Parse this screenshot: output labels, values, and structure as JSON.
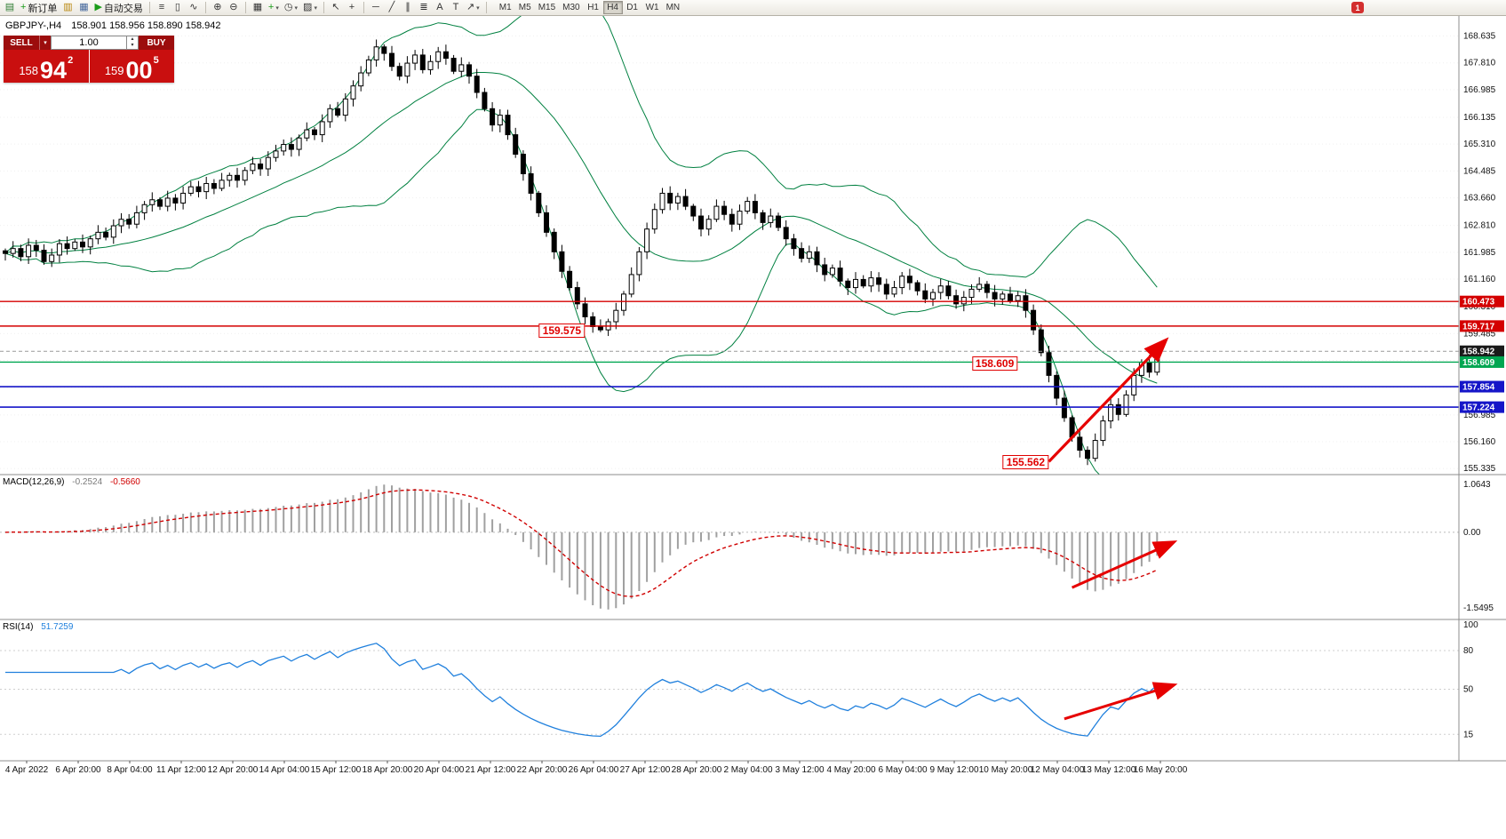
{
  "toolbar": {
    "caret_glyph": "▾",
    "items": [
      {
        "type": "icon",
        "name": "new-chart-icon",
        "glyph": "▤",
        "color": "#2e7d32"
      },
      {
        "type": "button",
        "name": "new-order-button",
        "glyph": "+",
        "color": "#1a9c1a",
        "label": "新订单"
      },
      {
        "type": "icon",
        "name": "charts-list-icon",
        "glyph": "▥",
        "color": "#b8860b"
      },
      {
        "type": "icon",
        "name": "market-watch-icon",
        "glyph": "▦",
        "color": "#44679c"
      },
      {
        "type": "button",
        "name": "auto-trading-button",
        "glyph": "▶",
        "color": "#1a9c1a",
        "label": "自动交易"
      },
      {
        "type": "sep"
      },
      {
        "type": "icon",
        "name": "bar-chart-icon",
        "glyph": "≡",
        "color": "#333333"
      },
      {
        "type": "icon",
        "name": "candlestick-chart-icon",
        "glyph": "▯",
        "color": "#333333"
      },
      {
        "type": "icon",
        "name": "line-chart-icon",
        "glyph": "∿",
        "color": "#333333"
      },
      {
        "type": "sep"
      },
      {
        "type": "icon",
        "name": "zoom-in-icon",
        "glyph": "⊕",
        "color": "#333333"
      },
      {
        "type": "icon",
        "name": "zoom-out-icon",
        "glyph": "⊖",
        "color": "#333333"
      },
      {
        "type": "sep"
      },
      {
        "type": "icon",
        "name": "tile-windows-icon",
        "glyph": "▦",
        "color": "#333333"
      },
      {
        "type": "icon",
        "name": "indicators-icon",
        "glyph": "+",
        "color": "#1a9c1a",
        "caret": true
      },
      {
        "type": "icon",
        "name": "periods-icon",
        "glyph": "◷",
        "color": "#333333",
        "caret": true
      },
      {
        "type": "icon",
        "name": "templates-icon",
        "glyph": "▨",
        "color": "#333333",
        "caret": true
      },
      {
        "type": "sep"
      },
      {
        "type": "icon",
        "name": "cursor-icon",
        "glyph": "↖",
        "color": "#333333"
      },
      {
        "type": "icon",
        "name": "crosshair-icon",
        "glyph": "+",
        "color": "#333333"
      },
      {
        "type": "sep"
      },
      {
        "type": "icon",
        "name": "horizontal-line-icon",
        "glyph": "─",
        "color": "#333333"
      },
      {
        "type": "icon",
        "name": "trendline-icon",
        "glyph": "╱",
        "color": "#333333"
      },
      {
        "type": "icon",
        "name": "channel-icon",
        "glyph": "∥",
        "color": "#333333"
      },
      {
        "type": "icon",
        "name": "fibonacci-icon",
        "glyph": "≣",
        "color": "#333333"
      },
      {
        "type": "icon",
        "name": "text-icon",
        "glyph": "A",
        "color": "#333333"
      },
      {
        "type": "icon",
        "name": "text-label-icon",
        "glyph": "T",
        "color": "#333333"
      },
      {
        "type": "icon",
        "name": "arrows-icon",
        "glyph": "↗",
        "color": "#333333",
        "caret": true
      },
      {
        "type": "sep"
      }
    ],
    "timeframes": [
      "M1",
      "M5",
      "M15",
      "M30",
      "H1",
      "H4",
      "D1",
      "W1",
      "MN"
    ],
    "active_timeframe": "H4",
    "notification_badge": "1"
  },
  "symbol_header": {
    "symbol": "GBPJPY-,H4",
    "ohlc": "158.901 158.956 158.890 158.942"
  },
  "quote_panel": {
    "sell_label": "SELL",
    "buy_label": "BUY",
    "volume": "1.00",
    "caret_up_glyph": "▴",
    "caret_down_glyph": "▾",
    "sell": {
      "small": "158",
      "big": "94",
      "sup": "2"
    },
    "buy": {
      "small": "159",
      "big": "00",
      "sup": "5"
    }
  },
  "indicators": {
    "macd": {
      "name": "MACD(12,26,9)",
      "value_main": "-0.2524",
      "value_signal": "-0.5660"
    },
    "rsi": {
      "name": "RSI(14)",
      "value": "51.7259"
    }
  },
  "colors": {
    "band_green": "#008040",
    "histogram_gray": "#a0a0a0",
    "signal_red": "#d00000",
    "rsi_blue": "#2080dd",
    "arrow_red": "#e60000",
    "panel_red": "#c90f0f",
    "axis_border": "#8c8c8c"
  },
  "chart_data": [
    {
      "type": "candlestick",
      "title": "GBPJPY- H4 with Bollinger Bands",
      "symbol": "GBPJPY-",
      "timeframe": "H4",
      "ohlc_display": {
        "open": "158.901",
        "high": "158.956",
        "low": "158.890",
        "close": "158.942"
      },
      "ylim": [
        155.15,
        169.25
      ],
      "bollinger": {
        "period": 20,
        "deviation": 2
      },
      "closes": [
        161.95,
        162.1,
        161.85,
        162.2,
        162.05,
        161.7,
        161.9,
        162.25,
        162.1,
        162.3,
        162.15,
        162.4,
        162.6,
        162.45,
        162.8,
        163.0,
        162.85,
        163.2,
        163.45,
        163.6,
        163.4,
        163.65,
        163.5,
        163.8,
        164.0,
        163.85,
        164.1,
        163.95,
        164.2,
        164.35,
        164.2,
        164.5,
        164.7,
        164.55,
        164.9,
        165.1,
        165.3,
        165.15,
        165.5,
        165.75,
        165.6,
        166.0,
        166.4,
        166.2,
        166.7,
        167.1,
        167.5,
        167.9,
        168.3,
        168.1,
        167.7,
        167.4,
        167.8,
        168.05,
        167.6,
        167.85,
        168.15,
        167.95,
        167.55,
        167.75,
        167.4,
        166.9,
        166.4,
        165.9,
        166.2,
        165.6,
        165.0,
        164.4,
        163.8,
        163.2,
        162.6,
        162.0,
        161.4,
        160.9,
        160.4,
        160.0,
        159.7,
        159.6,
        159.85,
        160.2,
        160.7,
        161.3,
        162.0,
        162.7,
        163.3,
        163.8,
        163.5,
        163.7,
        163.4,
        163.1,
        162.7,
        163.0,
        163.4,
        163.15,
        162.85,
        163.25,
        163.55,
        163.2,
        162.9,
        163.1,
        162.75,
        162.4,
        162.1,
        161.8,
        162.0,
        161.6,
        161.3,
        161.5,
        161.1,
        160.9,
        161.15,
        160.95,
        161.2,
        161.0,
        160.7,
        160.9,
        161.25,
        161.05,
        160.8,
        160.55,
        160.75,
        160.95,
        160.65,
        160.4,
        160.6,
        160.85,
        161.0,
        160.75,
        160.55,
        160.7,
        160.5,
        160.65,
        160.2,
        159.6,
        158.9,
        158.2,
        157.5,
        156.9,
        156.3,
        155.9,
        155.65,
        156.2,
        156.8,
        157.3,
        157.0,
        157.6,
        158.2,
        158.6,
        158.3,
        158.94
      ],
      "y_axis_labels": [
        "168.635",
        "167.810",
        "166.985",
        "166.135",
        "165.310",
        "164.485",
        "163.660",
        "162.810",
        "161.985",
        "161.160",
        "160.310",
        "159.485",
        "158.660",
        "157.835",
        "156.985",
        "156.160",
        "155.335"
      ],
      "x_axis_labels": [
        "4 Apr 2022",
        "6 Apr 20:00",
        "8 Apr 04:00",
        "11 Apr 12:00",
        "12 Apr 20:00",
        "14 Apr 04:00",
        "15 Apr 12:00",
        "18 Apr 20:00",
        "20 Apr 04:00",
        "21 Apr 12:00",
        "22 Apr 20:00",
        "26 Apr 04:00",
        "27 Apr 12:00",
        "28 Apr 20:00",
        "2 May 04:00",
        "3 May 12:00",
        "4 May 20:00",
        "6 May 04:00",
        "9 May 12:00",
        "10 May 20:00",
        "12 May 04:00",
        "13 May 12:00",
        "16 May 20:00"
      ],
      "price_lines": [
        {
          "price": 160.473,
          "label": "160.473",
          "color": "#d40000",
          "width": 1.3,
          "dash": ""
        },
        {
          "price": 159.717,
          "label": "159.717",
          "color": "#d40000",
          "width": 1.6,
          "dash": ""
        },
        {
          "price": 158.942,
          "label": "158.942",
          "color": "#9a9a9a",
          "width": 1,
          "dash": "4,3",
          "tag_bg": "#1a1a1a"
        },
        {
          "price": 158.609,
          "label": "158.609",
          "color": "#00a651",
          "width": 1.3,
          "dash": ""
        },
        {
          "price": 157.854,
          "label": "157.854",
          "color": "#1515c8",
          "width": 1.6,
          "dash": ""
        },
        {
          "price": 157.224,
          "label": "157.224",
          "color": "#1515c8",
          "width": 1.6,
          "dash": ""
        }
      ],
      "annotations": [
        {
          "text": "159.575",
          "index": 72,
          "price": 159.585
        },
        {
          "text": "158.609",
          "index": 128,
          "price": 158.57
        },
        {
          "text": "155.562",
          "index": 132,
          "price": 155.53
        }
      ],
      "arrow": {
        "from": {
          "index": 135,
          "price": 155.55
        },
        "to": {
          "index": 150,
          "price": 159.25
        }
      }
    },
    {
      "type": "bar",
      "name": "MACD(12,26,9)",
      "params": [
        12,
        26,
        9
      ],
      "computed_from": "closes",
      "current_main": -0.2524,
      "current_signal": -0.566,
      "axis_labels": [
        "1.0643",
        "0.00",
        "-1.5495"
      ],
      "arrow": {
        "from": {
          "index": 138,
          "value_frac": 0.78
        },
        "to": {
          "index": 151,
          "value_frac": 0.47
        }
      }
    },
    {
      "type": "line",
      "name": "RSI(14)",
      "period": 14,
      "computed_from": "closes",
      "current": 51.7259,
      "axis_values": [
        100,
        80,
        50,
        15
      ],
      "axis_labels": [
        "100",
        "80",
        "50",
        "15"
      ],
      "level_values": [
        80,
        50,
        15
      ],
      "arrow": {
        "from": {
          "index": 137,
          "value": 27
        },
        "to": {
          "index": 151,
          "value": 53
        }
      }
    }
  ]
}
